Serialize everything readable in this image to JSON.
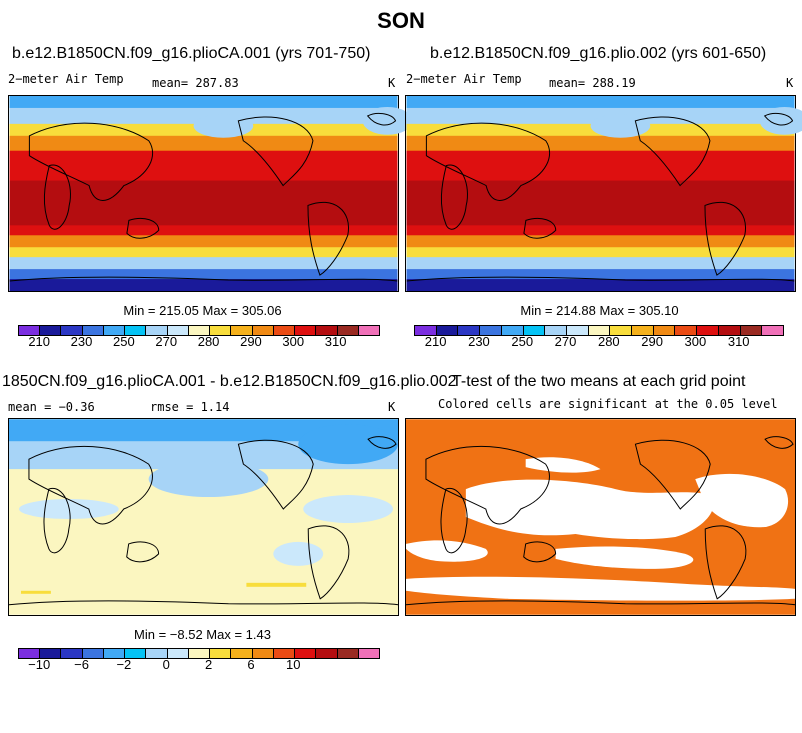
{
  "figure": {
    "title": "SON"
  },
  "panels": [
    {
      "id": "p1",
      "title": "b.e12.B1850CN.f09_g16.plioCA.001 (yrs 701-750)",
      "left_label": "2−meter Air Temp",
      "center_label": "mean= 287.83",
      "right_label": "K",
      "stats": "Min = 215.05 Max = 305.06",
      "field": "2m air temperature, SON climatology"
    },
    {
      "id": "p2",
      "title": "b.e12.B1850CN.f09_g16.plio.002 (yrs 601-650)",
      "left_label": "2−meter Air Temp",
      "center_label": "mean= 288.19",
      "right_label": "K",
      "stats": "Min = 214.88 Max = 305.10",
      "field": "2m air temperature, SON climatology"
    },
    {
      "id": "p3",
      "title": "1850CN.f09_g16.plioCA.001 - b.e12.B1850CN.f09_g16.plio.002",
      "left_label": "mean =  −0.36",
      "center_label": "rmse =    1.14",
      "right_label": "K",
      "stats": "Min =  −8.52 Max =   1.43",
      "field": "difference of the two means"
    },
    {
      "id": "p4",
      "title": "T-test of the two means at each grid point",
      "subtitle": "Colored cells are significant at the 0.05 level",
      "field": "significance mask"
    }
  ],
  "colorbars": {
    "temperature": {
      "colors": [
        "#7b2ee0",
        "#1a1a9a",
        "#2b37c4",
        "#3b74e0",
        "#41a9f5",
        "#05c3f5",
        "#a7d4f7",
        "#cbe8fb",
        "#fbf6c0",
        "#f8dd3c",
        "#f5b11c",
        "#f08a14",
        "#eb4b14",
        "#de1010",
        "#b40d10",
        "#9a2a22",
        "#f070b8"
      ],
      "ticks": [
        "210",
        "230",
        "250",
        "270",
        "280",
        "290",
        "300",
        "310"
      ]
    },
    "difference": {
      "colors": [
        "#7b2ee0",
        "#1a1a9a",
        "#2b37c4",
        "#3b74e0",
        "#41a9f5",
        "#05c3f5",
        "#a7d4f7",
        "#cbe8fb",
        "#fbf6c0",
        "#f8dd3c",
        "#f5b11c",
        "#f08a14",
        "#eb4b14",
        "#de1010",
        "#b40d10",
        "#9a2a22",
        "#f070b8"
      ],
      "ticks": [
        "−10",
        "−6",
        "−2",
        "0",
        "2",
        "6",
        "10"
      ]
    }
  },
  "map_colors": {
    "hot": "#b40d10",
    "warm": "#de1010",
    "orange": "#f08a14",
    "yellow": "#f8dd3c",
    "pale": "#fbf6c0",
    "lightblue": "#a7d4f7",
    "blue": "#41a9f5",
    "navy": "#2b37c4",
    "ttest": "#f07214"
  }
}
